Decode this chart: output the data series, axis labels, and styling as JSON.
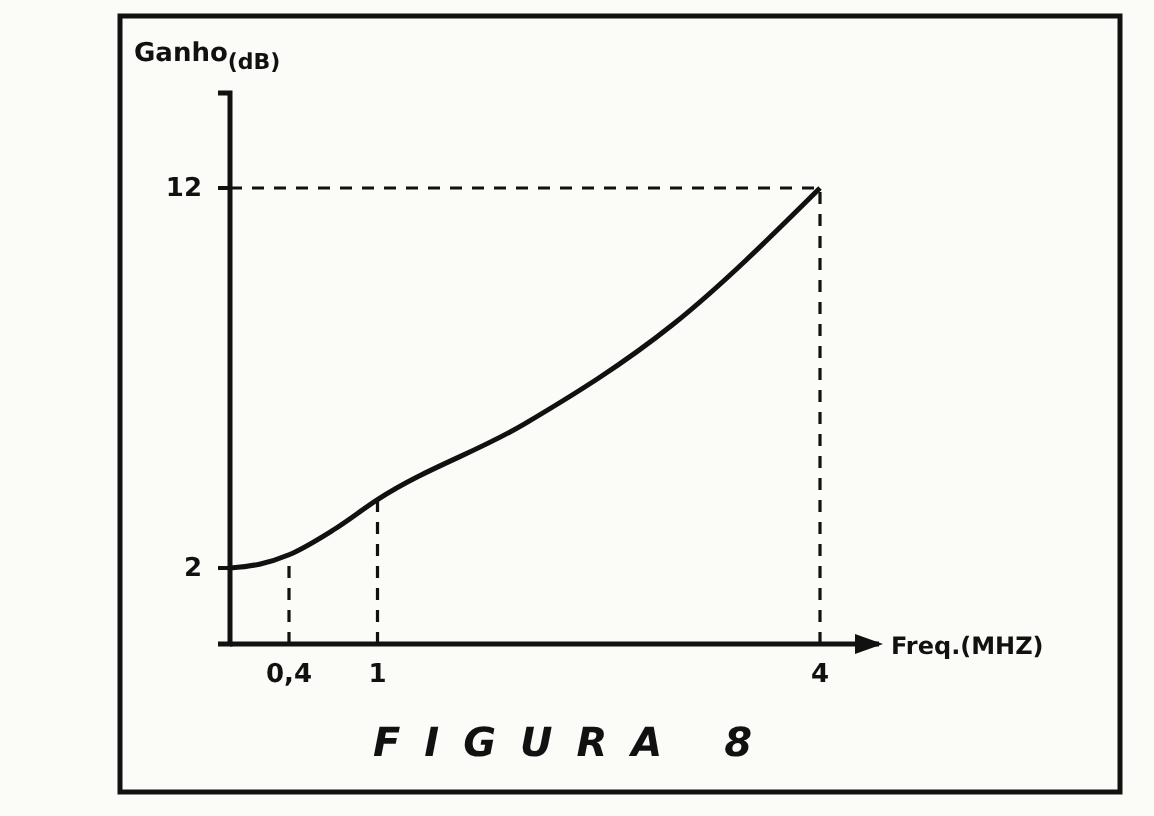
{
  "chart_data": {
    "type": "line",
    "title": "FIGURA 8",
    "xlabel": "Freq.(MHZ)",
    "ylabel": "Ganho$_{(dB)}$",
    "x": [
      0,
      0.2,
      0.4,
      0.7,
      1,
      2,
      3,
      4
    ],
    "series": [
      {
        "color": "#111111",
        "values": [
          2,
          2.1,
          2.35,
          3,
          3.8,
          5.8,
          8.4,
          12
        ]
      }
    ],
    "xlim": [
      0,
      4.4
    ],
    "xticks": [
      {
        "value": 0.4,
        "label": "0,4"
      },
      1,
      4
    ],
    "ylim": [
      0,
      14.5
    ],
    "yticks": [
      2,
      12
    ],
    "ref_lines": [
      {
        "axis": "x",
        "value": 0.4,
        "line_style": "dashed"
      },
      {
        "axis": "x",
        "value": 1,
        "line_style": "dashed"
      },
      {
        "axis": "x",
        "value": 4,
        "line_style": "dashed"
      },
      {
        "axis": "y",
        "value": 12,
        "line_style": "dashed"
      }
    ],
    "grid": false,
    "marker": "none",
    "line_style": "solid"
  }
}
